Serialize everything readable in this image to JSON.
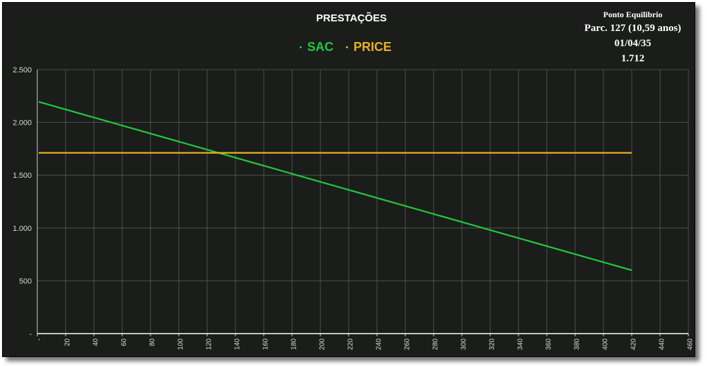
{
  "chart_data": {
    "type": "line",
    "title": "PRESTAÇÕES",
    "xlabel": "",
    "ylabel": "",
    "xlim": [
      0,
      460
    ],
    "ylim": [
      0,
      2500
    ],
    "x_ticks": [
      "-",
      "20",
      "40",
      "60",
      "80",
      "100",
      "120",
      "140",
      "160",
      "180",
      "200",
      "220",
      "240",
      "260",
      "280",
      "300",
      "320",
      "340",
      "360",
      "380",
      "400",
      "420",
      "440",
      "460"
    ],
    "y_ticks": [
      "-",
      "500",
      "1.000",
      "1.500",
      "2.000",
      "2.500"
    ],
    "y_tick_values": [
      0,
      500,
      1000,
      1500,
      2000,
      2500
    ],
    "grid": true,
    "legend_position": "top-center",
    "series": [
      {
        "name": "SAC",
        "color": "#22c93c",
        "x": [
          1,
          420
        ],
        "values": [
          2195,
          600
        ]
      },
      {
        "name": "PRICE",
        "color": "#e8b020",
        "x": [
          1,
          420
        ],
        "values": [
          1712,
          1712
        ]
      }
    ],
    "annotation": {
      "label": "Ponto Equilibrio",
      "installment": "Parc. 127 (10,59 anos)",
      "date": "01/04/35",
      "value": "1.712"
    }
  }
}
